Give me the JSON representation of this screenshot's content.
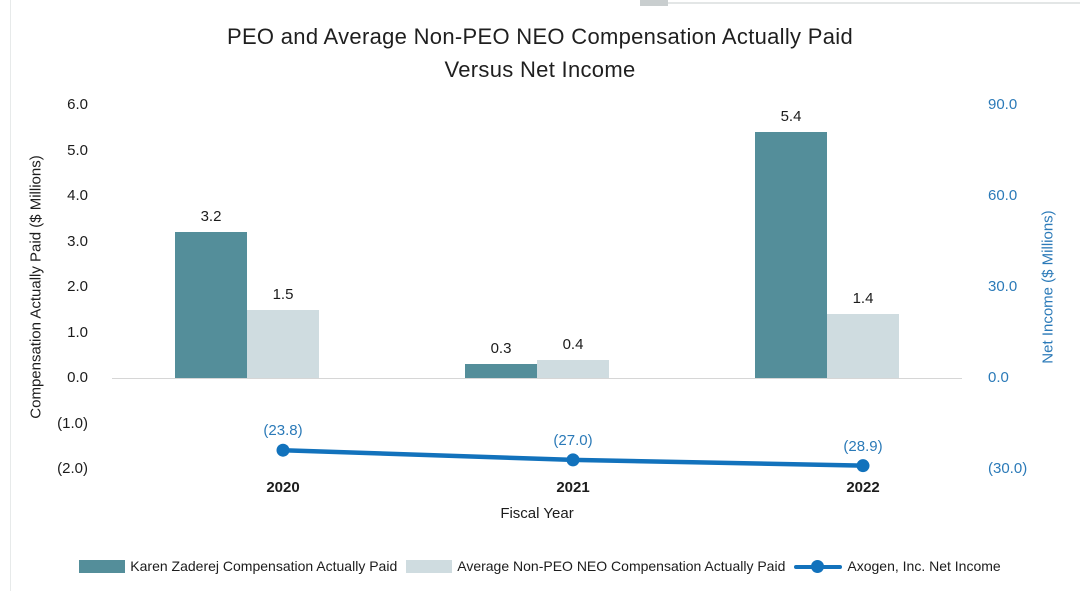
{
  "chart_data": {
    "type": "bar+line",
    "title": "PEO and Average Non-PEO NEO Compensation Actually Paid Versus Net Income",
    "title_lines": [
      "PEO and Average Non-PEO NEO Compensation Actually Paid",
      "Versus Net Income"
    ],
    "categories": [
      "2020",
      "2021",
      "2022"
    ],
    "xlabel": "Fiscal Year",
    "grid": false,
    "legend_position": "bottom",
    "left_axis": {
      "label": "Compensation Actually Paid ($ Millions)",
      "ticks": [
        "6.0",
        "5.0",
        "4.0",
        "3.0",
        "2.0",
        "1.0",
        "0.0",
        "(1.0)",
        "(2.0)"
      ],
      "min": -2.0,
      "max": 6.0
    },
    "right_axis": {
      "label": "Net Income ($ Millions)",
      "ticks": [
        "90.0",
        "60.0",
        "30.0",
        "0.0",
        "(30.0)"
      ],
      "min": -30.0,
      "max": 90.0
    },
    "series": [
      {
        "name": "Karen Zaderej Compensation Actually Paid",
        "kind": "bar",
        "axis": "left",
        "color": "#548e9a",
        "values": [
          3.2,
          0.3,
          5.4
        ],
        "labels": [
          "3.2",
          "0.3",
          "5.4"
        ]
      },
      {
        "name": "Average Non-PEO NEO Compensation Actually Paid",
        "kind": "bar",
        "axis": "left",
        "color": "#cfdce0",
        "values": [
          1.5,
          0.4,
          1.4
        ],
        "labels": [
          "1.5",
          "0.4",
          "1.4"
        ]
      },
      {
        "name": "Axogen, Inc. Net Income",
        "kind": "line",
        "axis": "right",
        "color": "#1272bc",
        "values": [
          -23.8,
          -27.0,
          -28.9
        ],
        "labels": [
          "(23.8)",
          "(27.0)",
          "(28.9)"
        ]
      }
    ],
    "colors": {
      "peo_bar": "#548e9a",
      "neo_bar": "#cfdce0",
      "net_income_line": "#1272bc",
      "blue_axis_text": "#2b7ab8"
    }
  }
}
